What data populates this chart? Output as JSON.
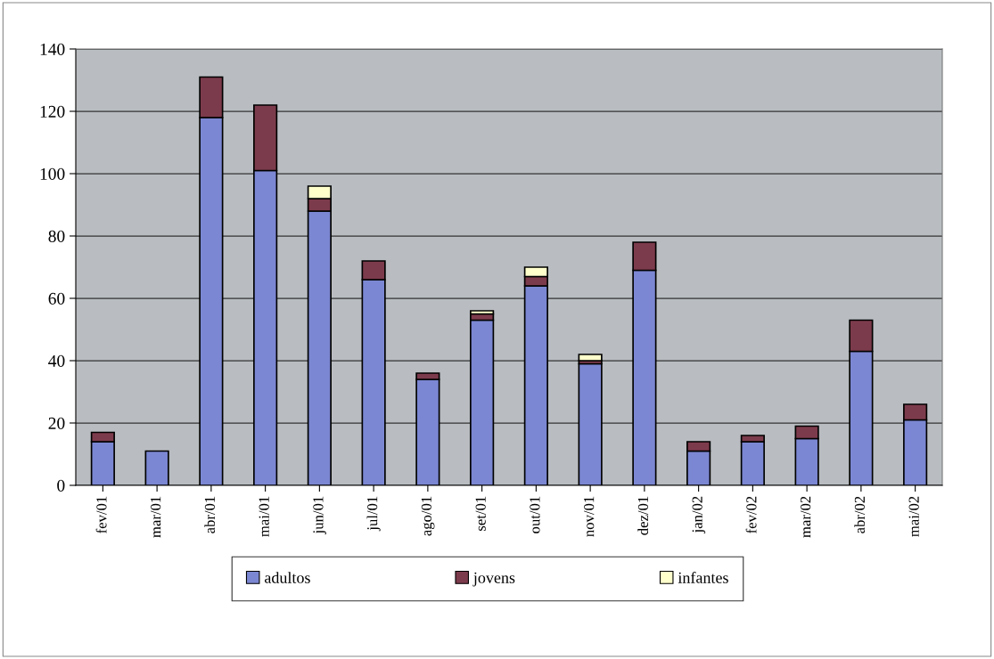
{
  "chart_data": {
    "type": "bar",
    "stacked": true,
    "categories": [
      "fev/01",
      "mar/01",
      "abr/01",
      "mai/01",
      "jun/01",
      "jul/01",
      "ago/01",
      "set/01",
      "out/01",
      "nov/01",
      "dez/01",
      "jan/02",
      "fev/02",
      "mar/02",
      "abr/02",
      "mai/02"
    ],
    "series": [
      {
        "name": "adultos",
        "color": "#7b87d2",
        "values": [
          14,
          11,
          118,
          101,
          88,
          66,
          34,
          53,
          64,
          39,
          69,
          11,
          14,
          15,
          43,
          21
        ]
      },
      {
        "name": "jovens",
        "color": "#7c3b4c",
        "values": [
          3,
          0,
          13,
          21,
          4,
          6,
          2,
          2,
          3,
          1,
          9,
          3,
          2,
          4,
          10,
          5
        ]
      },
      {
        "name": "infantes",
        "color": "#ffffcc",
        "values": [
          0,
          0,
          0,
          0,
          4,
          0,
          0,
          1,
          3,
          2,
          0,
          0,
          0,
          0,
          0,
          0
        ]
      }
    ],
    "ylim": [
      0,
      140
    ],
    "yticks": [
      0,
      20,
      40,
      60,
      80,
      100,
      120,
      140
    ],
    "grid": "y",
    "legend": "bottom"
  }
}
